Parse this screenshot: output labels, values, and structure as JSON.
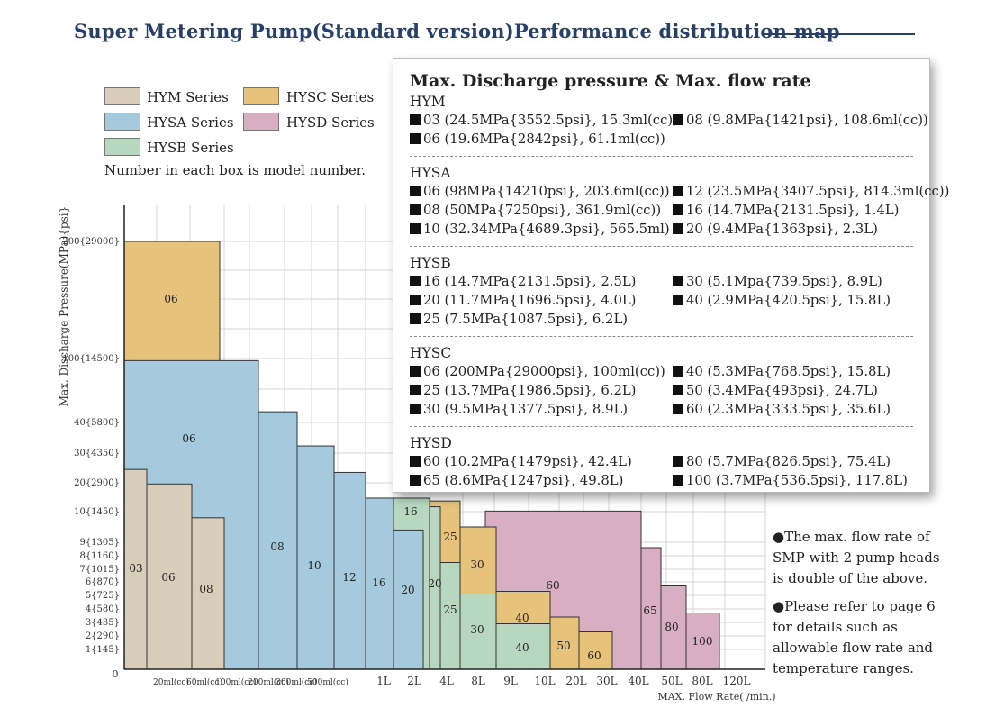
{
  "title": "Super Metering Pump(Standard version)Performance distribution map",
  "legend": [
    {
      "label": "HYM Series",
      "color": "#d8cdb9"
    },
    {
      "label": "HYSC Series",
      "color": "#e6c27a"
    },
    {
      "label": "HYSA Series",
      "color": "#a5c9dd"
    },
    {
      "label": "HYSD Series",
      "color": "#d8aec3"
    },
    {
      "label": "HYSB Series",
      "color": "#b7d8bf"
    }
  ],
  "note": "Number in each box is model number.",
  "chart_data": {
    "type": "bar",
    "xlabel": "MAX. Flow Rate( /min.)",
    "ylabel": "Max. Discharge Pressure(MPa){psi}",
    "x_ticks": [
      "20ml(cc)",
      "60ml(cc)",
      "100ml(cc)",
      "200ml(cc)",
      "300ml(cc)",
      "500ml(cc)",
      "1L",
      "2L",
      "4L",
      "8L",
      "9L",
      "10L",
      "20L",
      "30L",
      "40L",
      "50L",
      "80L",
      "120L"
    ],
    "y_ticks": [
      "1{145}",
      "2{290}",
      "3{435}",
      "4{580}",
      "5{725}",
      "6{870}",
      "7{1015}",
      "8{1160}",
      "9{1305}",
      "10{1450}",
      "20{2900}",
      "30{4350}",
      "40{5800}",
      "100{14500}",
      "200{29000}"
    ],
    "origin_label": "0",
    "boxes": [
      {
        "series": "HYM",
        "model": "03",
        "pressure_mpa": 24.5,
        "flow": "15.3ml(cc)"
      },
      {
        "series": "HYM",
        "model": "06",
        "pressure_mpa": 19.6,
        "flow": "61.1ml(cc)"
      },
      {
        "series": "HYM",
        "model": "08",
        "pressure_mpa": 9.8,
        "flow": "108.6ml(cc)"
      },
      {
        "series": "HYSC",
        "model": "06",
        "pressure_mpa": 200,
        "flow": "100ml(cc)"
      },
      {
        "series": "HYSA",
        "model": "06",
        "pressure_mpa": 98,
        "flow": "203.6ml(cc)"
      },
      {
        "series": "HYSA",
        "model": "08",
        "pressure_mpa": 50,
        "flow": "361.9ml(cc)"
      },
      {
        "series": "HYSA",
        "model": "10",
        "pressure_mpa": 32.34,
        "flow": "565.5ml"
      },
      {
        "series": "HYSA",
        "model": "12",
        "pressure_mpa": 23.5,
        "flow": "814.3ml(cc)"
      },
      {
        "series": "HYSA",
        "model": "16",
        "pressure_mpa": 14.7,
        "flow": "1.4L"
      },
      {
        "series": "HYSA",
        "model": "20",
        "pressure_mpa": 9.4,
        "flow": "2.3L"
      },
      {
        "series": "HYSB",
        "model": "16",
        "pressure_mpa": 14.7,
        "flow": "2.5L"
      },
      {
        "series": "HYSB",
        "model": "20",
        "pressure_mpa": 11.7,
        "flow": "4.0L"
      },
      {
        "series": "HYSB",
        "model": "25",
        "pressure_mpa": 7.5,
        "flow": "6.2L"
      },
      {
        "series": "HYSB",
        "model": "30",
        "pressure_mpa": 5.1,
        "flow": "8.9L"
      },
      {
        "series": "HYSB",
        "model": "40",
        "pressure_mpa": 2.9,
        "flow": "15.8L"
      },
      {
        "series": "HYSC",
        "model": "25",
        "pressure_mpa": 13.7,
        "flow": "6.2L"
      },
      {
        "series": "HYSC",
        "model": "30",
        "pressure_mpa": 9.5,
        "flow": "8.9L"
      },
      {
        "series": "HYSC",
        "model": "40",
        "pressure_mpa": 5.3,
        "flow": "15.8L"
      },
      {
        "series": "HYSC",
        "model": "50",
        "pressure_mpa": 3.4,
        "flow": "24.7L"
      },
      {
        "series": "HYSC",
        "model": "60",
        "pressure_mpa": 2.3,
        "flow": "35.6L"
      },
      {
        "series": "HYSD",
        "model": "60",
        "pressure_mpa": 10.2,
        "flow": "42.4L"
      },
      {
        "series": "HYSD",
        "model": "65",
        "pressure_mpa": 8.6,
        "flow": "49.8L"
      },
      {
        "series": "HYSD",
        "model": "80",
        "pressure_mpa": 5.7,
        "flow": "75.4L"
      },
      {
        "series": "HYSD",
        "model": "100",
        "pressure_mpa": 3.7,
        "flow": "117.8L"
      }
    ]
  },
  "panel": {
    "title": "Max. Discharge pressure & Max. flow rate",
    "sections": [
      {
        "name": "HYM",
        "items": [
          "03  (24.5MPa{3552.5psi}, 15.3ml(cc))",
          "08  (9.8MPa{1421psi}, 108.6ml(cc))",
          "06  (19.6MPa{2842psi}, 61.1ml(cc))"
        ]
      },
      {
        "name": "HYSA",
        "items": [
          "06  (98MPa{14210psi}, 203.6ml(cc))",
          "12  (23.5MPa{3407.5psi}, 814.3ml(cc))",
          "08  (50MPa{7250psi}, 361.9ml(cc))",
          "16  (14.7MPa{2131.5psi}, 1.4L)",
          "10  (32.34MPa{4689.3psi}, 565.5ml)",
          "20  (9.4MPa{1363psi}, 2.3L)"
        ]
      },
      {
        "name": "HYSB",
        "items": [
          "16  (14.7MPa{2131.5psi}, 2.5L)",
          "30  (5.1Mpa{739.5psi}, 8.9L)",
          "20  (11.7MPa{1696.5psi}, 4.0L)",
          "40  (2.9MPa{420.5psi}, 15.8L)",
          "25  (7.5MPa{1087.5psi}, 6.2L)"
        ]
      },
      {
        "name": "HYSC",
        "items": [
          "06  (200MPa{29000psi}, 100ml(cc))",
          "40  (5.3MPa{768.5psi}, 15.8L)",
          "25  (13.7MPa{1986.5psi}, 6.2L)",
          "50  (3.4MPa{493psi}, 24.7L)",
          "30  (9.5MPa{1377.5psi}, 8.9L)",
          "60  (2.3MPa{333.5psi}, 35.6L)"
        ]
      },
      {
        "name": "HYSD",
        "items": [
          "60  (10.2MPa{1479psi}, 42.4L)",
          "80  (5.7MPa{826.5psi}, 75.4L)",
          "65  (8.6MPa{1247psi}, 49.8L)",
          "100  (3.7MPa{536.5psi}, 117.8L)"
        ]
      }
    ]
  },
  "side_notes": [
    "●The max. flow rate of SMP with 2 pump heads is double of the above.",
    "●Please refer to page 6 for details such as allowable flow rate and temperature ranges."
  ]
}
